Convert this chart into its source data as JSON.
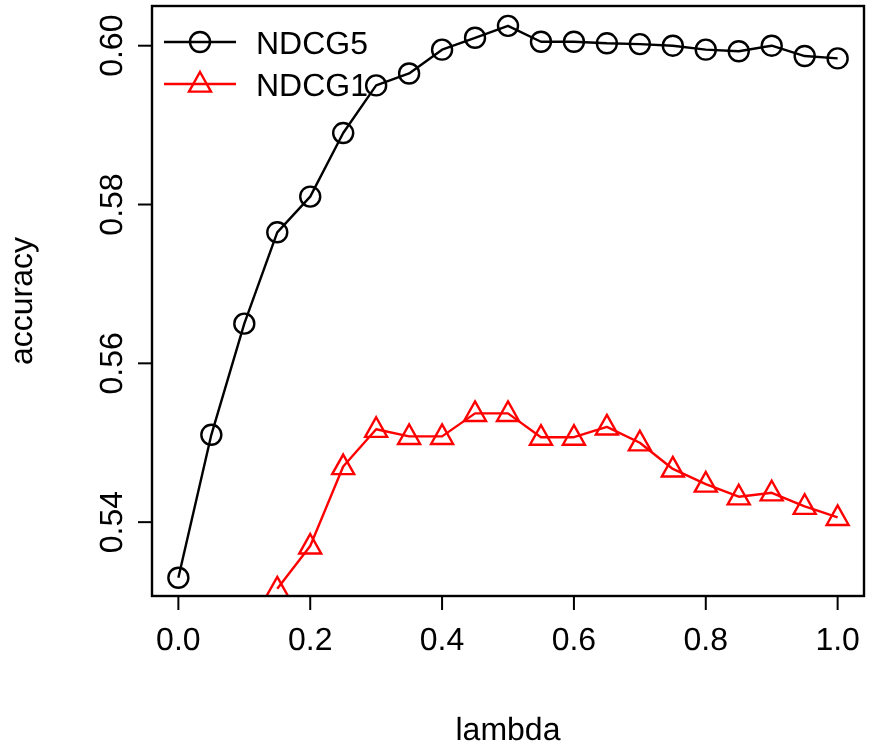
{
  "chart_data": {
    "type": "line",
    "xlabel": "lambda",
    "ylabel": "accuracy",
    "xlim": [
      -0.04,
      1.04
    ],
    "ylim": [
      0.5307,
      0.605
    ],
    "xticks": [
      {
        "value": 0,
        "label": "0.0"
      },
      0.2,
      0.4,
      0.6,
      0.8,
      {
        "value": 1,
        "label": "1.0"
      }
    ],
    "yticks": [
      0.54,
      0.56,
      0.58,
      {
        "value": 0.6,
        "label": "0.60"
      }
    ],
    "legend": "top left",
    "grid": false,
    "line_style": "solid",
    "series": [
      {
        "name": "NDCG5",
        "color": "#000000",
        "marker": "circle",
        "x": [
          0,
          0.05,
          0.1,
          0.15,
          0.2,
          0.25,
          0.3,
          0.35,
          0.4,
          0.45,
          0.5,
          0.55,
          0.6,
          0.65,
          0.7,
          0.75,
          0.8,
          0.85,
          0.9,
          0.95,
          1
        ],
        "values": [
          0.533,
          0.551,
          0.565,
          0.5765,
          0.581,
          0.589,
          0.595,
          0.5965,
          0.5995,
          0.601,
          0.6025,
          0.6005,
          0.6005,
          0.6003,
          0.6002,
          0.6,
          0.5995,
          0.5993,
          0.6,
          0.5987,
          0.5984
        ]
      },
      {
        "name": "NDCG1",
        "color": "#ff0000",
        "marker": "triangle",
        "x": [
          0.15,
          0.2,
          0.25,
          0.3,
          0.35,
          0.4,
          0.45,
          0.5,
          0.55,
          0.6,
          0.65,
          0.7,
          0.75,
          0.8,
          0.85,
          0.9,
          0.95,
          1
        ],
        "values": [
          0.5316,
          0.537,
          0.547,
          0.5517,
          0.5508,
          0.5508,
          0.5537,
          0.5537,
          0.5507,
          0.5507,
          0.552,
          0.55,
          0.5467,
          0.5448,
          0.5432,
          0.5437,
          0.542,
          0.5406
        ]
      }
    ]
  }
}
